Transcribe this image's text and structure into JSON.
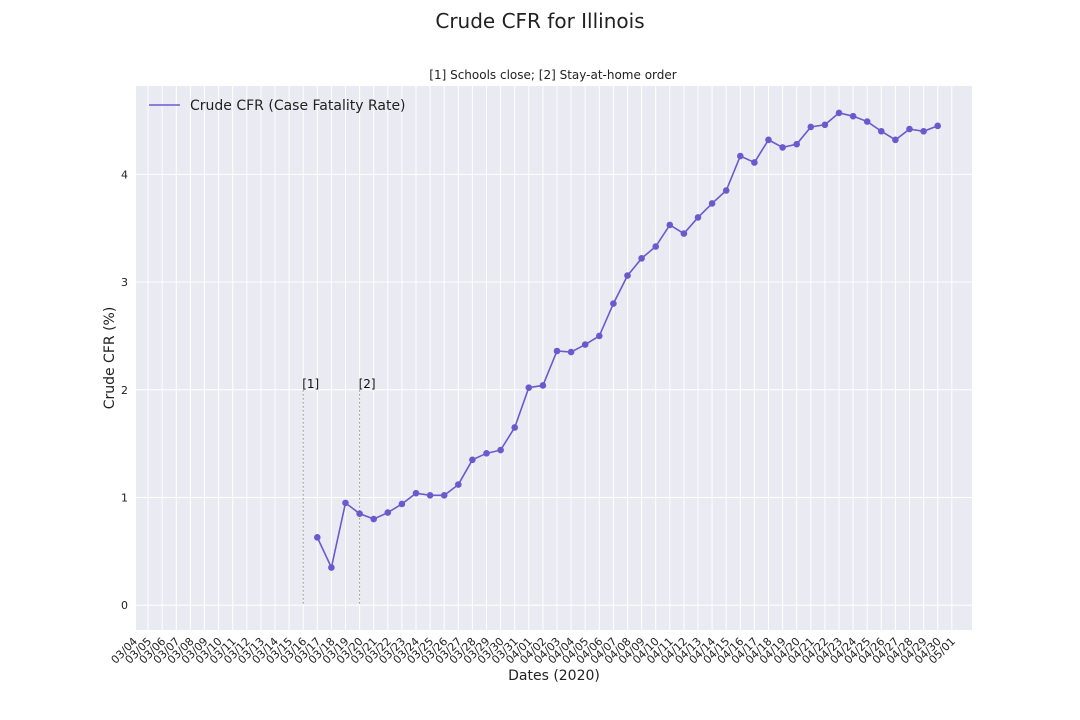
{
  "title": "Crude CFR for Illinois",
  "chart_data": {
    "type": "line",
    "title": "[1] Schools close; [2] Stay-at-home order",
    "xlabel": "Dates (2020)",
    "ylabel": "Crude CFR (%)",
    "x_ticks": [
      "03/04",
      "03/05",
      "03/06",
      "03/07",
      "03/08",
      "03/09",
      "03/10",
      "03/11",
      "03/12",
      "03/13",
      "03/14",
      "03/15",
      "03/16",
      "03/17",
      "03/18",
      "03/19",
      "03/20",
      "03/21",
      "03/22",
      "03/23",
      "03/24",
      "03/25",
      "03/26",
      "03/27",
      "03/28",
      "03/29",
      "03/30",
      "03/31",
      "04/01",
      "04/02",
      "04/03",
      "04/04",
      "04/05",
      "04/06",
      "04/07",
      "04/08",
      "04/09",
      "04/10",
      "04/11",
      "04/12",
      "04/13",
      "04/14",
      "04/15",
      "04/16",
      "04/17",
      "04/18",
      "04/19",
      "04/20",
      "04/21",
      "04/22",
      "04/23",
      "04/24",
      "04/25",
      "04/26",
      "04/27",
      "04/28",
      "04/29",
      "04/30",
      "05/01"
    ],
    "y_ticks": [
      0,
      1,
      2,
      3,
      4
    ],
    "ylim": [
      -0.23,
      4.82
    ],
    "grid": true,
    "legend_position": "top-left",
    "series": [
      {
        "name": "Crude CFR (Case Fatality Rate)",
        "color": "#6a5acd",
        "x": [
          "03/17",
          "03/18",
          "03/19",
          "03/20",
          "03/21",
          "03/22",
          "03/23",
          "03/24",
          "03/25",
          "03/26",
          "03/27",
          "03/28",
          "03/29",
          "03/30",
          "03/31",
          "04/01",
          "04/02",
          "04/03",
          "04/04",
          "04/05",
          "04/06",
          "04/07",
          "04/08",
          "04/09",
          "04/10",
          "04/11",
          "04/12",
          "04/13",
          "04/14",
          "04/15",
          "04/16",
          "04/17",
          "04/18",
          "04/19",
          "04/20",
          "04/21",
          "04/22",
          "04/23",
          "04/24",
          "04/25",
          "04/26",
          "04/27",
          "04/28",
          "04/29",
          "04/30"
        ],
        "values": [
          0.63,
          0.35,
          0.95,
          0.85,
          0.8,
          0.86,
          0.94,
          1.04,
          1.02,
          1.02,
          1.12,
          1.35,
          1.41,
          1.44,
          1.65,
          2.02,
          2.04,
          2.36,
          2.35,
          2.42,
          2.5,
          2.8,
          3.06,
          3.22,
          3.33,
          3.53,
          3.45,
          3.6,
          3.73,
          3.85,
          4.17,
          4.11,
          4.32,
          4.25,
          4.28,
          4.44,
          4.46,
          4.57,
          4.54,
          4.49,
          4.4,
          4.32,
          4.42,
          4.4,
          4.45
        ]
      }
    ],
    "annotations": [
      {
        "label": "[1]",
        "x": "03/16",
        "y": 2.0
      },
      {
        "label": "[2]",
        "x": "03/20",
        "y": 2.0
      }
    ]
  }
}
